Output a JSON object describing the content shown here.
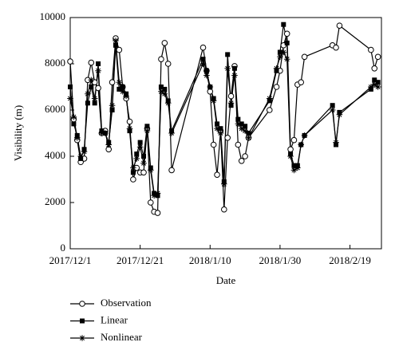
{
  "chart_data": {
    "type": "line",
    "x_label": "Date",
    "y_label": "Visibility (m)",
    "x": [
      "2017/12/1",
      "2017/12/2",
      "2017/12/3",
      "2017/12/4",
      "2017/12/5",
      "2017/12/6",
      "2017/12/7",
      "2017/12/8",
      "2017/12/9",
      "2017/12/10",
      "2017/12/11",
      "2017/12/12",
      "2017/12/13",
      "2017/12/14",
      "2017/12/15",
      "2017/12/16",
      "2017/12/17",
      "2017/12/18",
      "2017/12/19",
      "2017/12/20",
      "2017/12/21",
      "2017/12/22",
      "2017/12/23",
      "2017/12/24",
      "2017/12/25",
      "2017/12/26",
      "2017/12/27",
      "2017/12/28",
      "2017/12/29",
      "2017/12/30",
      "2018/1/8",
      "2018/1/9",
      "2018/1/10",
      "2018/1/11",
      "2018/1/12",
      "2018/1/13",
      "2018/1/14",
      "2018/1/15",
      "2018/1/16",
      "2018/1/17",
      "2018/1/18",
      "2018/1/19",
      "2018/1/20",
      "2018/1/21",
      "2018/1/27",
      "2018/1/29",
      "2018/1/30",
      "2018/1/31",
      "2018/2/1",
      "2018/2/2",
      "2018/2/3",
      "2018/2/4",
      "2018/2/5",
      "2018/2/6",
      "2018/2/14",
      "2018/2/15",
      "2018/2/16",
      "2018/2/25",
      "2018/2/26",
      "2018/2/27"
    ],
    "series": [
      {
        "name": "Observation",
        "color": "#000000",
        "marker": "circle",
        "values": [
          8100,
          5600,
          4700,
          3750,
          3900,
          7300,
          8050,
          7200,
          6950,
          5000,
          5100,
          4300,
          7200,
          9100,
          8600,
          7000,
          6500,
          5500,
          3000,
          3500,
          3300,
          3300,
          5200,
          2000,
          1600,
          1550,
          8200,
          8900,
          8000,
          3400,
          8700,
          7700,
          6800,
          4500,
          3200,
          5100,
          1700,
          4800,
          6600,
          7900,
          4500,
          3800,
          4000,
          4800,
          6000,
          7000,
          7700,
          8800,
          9300,
          4300,
          4700,
          7100,
          7200,
          8300,
          8800,
          8700,
          9650,
          8600,
          7800,
          8300
        ]
      },
      {
        "name": "Linear",
        "color": "#000000",
        "marker": "square",
        "values": [
          7000,
          5400,
          4900,
          3900,
          4300,
          6300,
          7000,
          6300,
          8000,
          5100,
          5000,
          4600,
          6000,
          8800,
          6900,
          7000,
          6700,
          5100,
          3300,
          4100,
          4600,
          4000,
          5300,
          3500,
          2400,
          2300,
          7000,
          6900,
          6400,
          5100,
          8200,
          7700,
          7000,
          6500,
          5400,
          5200,
          2900,
          8400,
          6200,
          7800,
          5600,
          5400,
          5300,
          5000,
          6400,
          7700,
          8500,
          9700,
          8900,
          4100,
          3600,
          3600,
          4500,
          4900,
          6200,
          4500,
          5900,
          6900,
          7300,
          7200
        ]
      },
      {
        "name": "Nonlinear",
        "color": "#000000",
        "marker": "asterisk",
        "values": [
          6500,
          5700,
          4800,
          4000,
          4200,
          6700,
          7300,
          6500,
          7700,
          5000,
          5000,
          4500,
          6200,
          9000,
          7200,
          6800,
          6600,
          5200,
          3500,
          3900,
          4400,
          3700,
          5100,
          3400,
          2300,
          2400,
          6800,
          6700,
          6300,
          5000,
          8000,
          7500,
          7000,
          6400,
          5200,
          5000,
          2800,
          7800,
          6300,
          7500,
          5400,
          5200,
          5100,
          4800,
          6500,
          7800,
          8300,
          8500,
          8200,
          4000,
          3400,
          3500,
          4500,
          4900,
          6000,
          4600,
          5800,
          7000,
          7100,
          7000
        ]
      }
    ],
    "xlim": [
      "2017/12/1",
      "2018/2/28"
    ],
    "xticks": [
      "2017/12/1",
      "2017/12/21",
      "2018/1/10",
      "2018/1/30",
      "2018/2/19"
    ],
    "ylim": [
      0,
      10000
    ],
    "yticks": [
      0,
      2000,
      4000,
      6000,
      8000,
      10000
    ],
    "legend": "bottom-left"
  }
}
